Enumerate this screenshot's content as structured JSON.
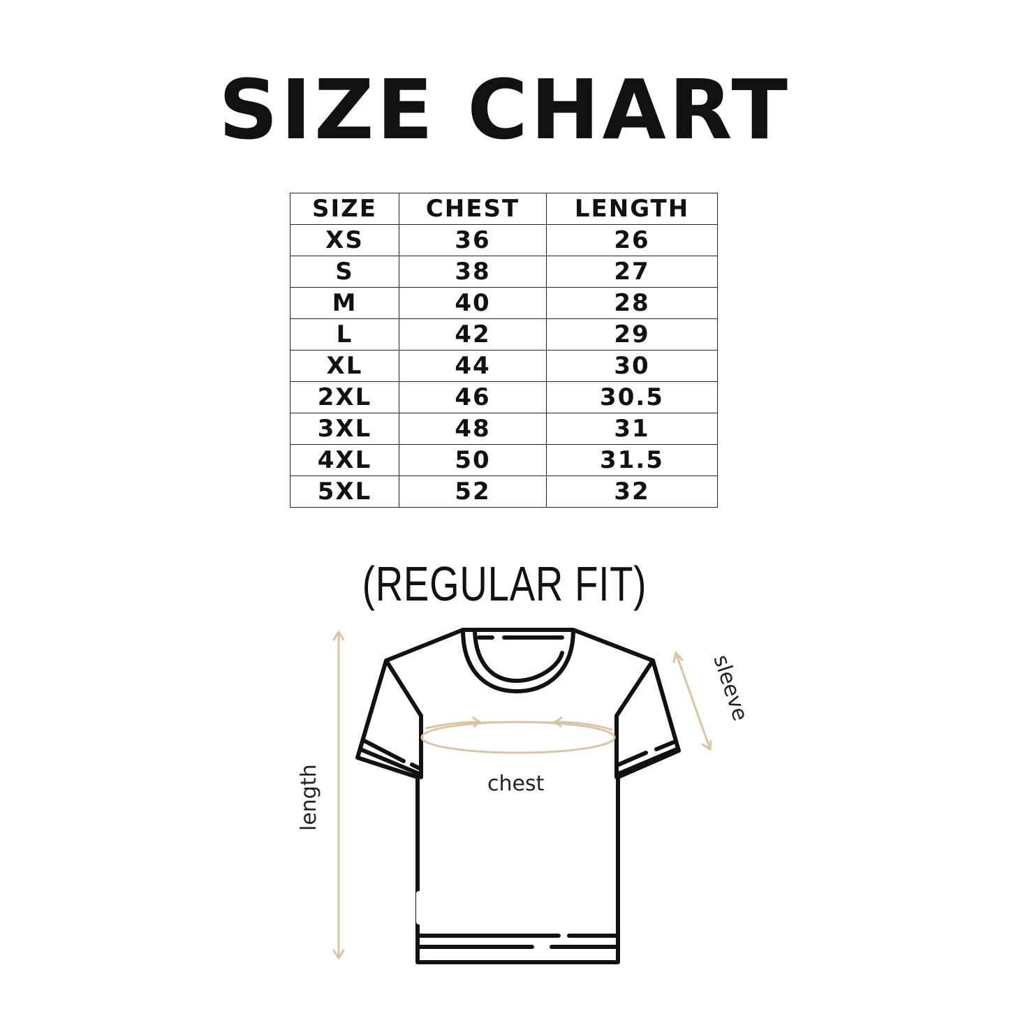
{
  "title": "SIZE CHART",
  "table": {
    "headers": [
      "SIZE",
      "CHEST",
      "LENGTH"
    ],
    "rows": [
      [
        "XS",
        "36",
        "26"
      ],
      [
        "S",
        "38",
        "27"
      ],
      [
        "M",
        "40",
        "28"
      ],
      [
        "L",
        "42",
        "29"
      ],
      [
        "XL",
        "44",
        "30"
      ],
      [
        "2XL",
        "46",
        "30.5"
      ],
      [
        "3XL",
        "48",
        "31"
      ],
      [
        "4XL",
        "50",
        "31.5"
      ],
      [
        "5XL",
        "52",
        "32"
      ]
    ]
  },
  "subtitle": "(REGULAR FIT)",
  "diagram": {
    "length_label": "length",
    "chest_label": "chest",
    "sleeve_label": "sleeve",
    "measure_color": "#d9c4a6",
    "outline_color": "#111111"
  }
}
